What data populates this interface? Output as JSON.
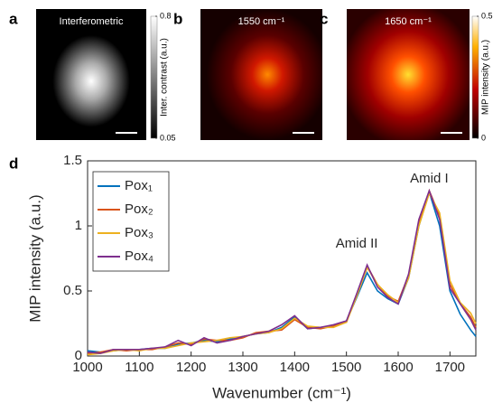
{
  "panels": [
    {
      "letter": "a",
      "label": "Interferometric",
      "colorbar": {
        "label": "Inter. contrast (a.u.)",
        "lim": [
          0.05,
          0.8
        ],
        "ticks": [
          0.05,
          0.8
        ]
      }
    },
    {
      "letter": "b",
      "label": "1550 cm⁻¹"
    },
    {
      "letter": "c",
      "label": "1650 cm⁻¹",
      "colorbar": {
        "label": "MIP intensity (a.u.)",
        "lim": [
          0,
          0.5
        ],
        "ticks": [
          0,
          0.5
        ]
      }
    }
  ],
  "chart_data": {
    "type": "line",
    "letter": "d",
    "xlabel": "Wavenumber (cm⁻¹)",
    "ylabel": "MIP intensity (a.u.)",
    "annotations": [
      "Amid II",
      "Amid I"
    ],
    "legend": "upper left",
    "xlim": [
      1000,
      1750
    ],
    "xticks": [
      1000,
      1100,
      1200,
      1300,
      1400,
      1500,
      1600,
      1700
    ],
    "ylim": [
      0,
      1.5
    ],
    "yticks": [
      0,
      0.5,
      1,
      1.5
    ],
    "x": [
      1000,
      1025,
      1050,
      1075,
      1100,
      1125,
      1150,
      1175,
      1200,
      1225,
      1250,
      1275,
      1300,
      1325,
      1350,
      1375,
      1400,
      1425,
      1450,
      1475,
      1500,
      1520,
      1540,
      1560,
      1580,
      1600,
      1620,
      1640,
      1660,
      1680,
      1700,
      1720,
      1740,
      1750
    ],
    "series": [
      {
        "name": "Pox₁",
        "color": "#0072bd",
        "values": [
          0.04,
          0.03,
          0.04,
          0.05,
          0.05,
          0.06,
          0.06,
          0.09,
          0.1,
          0.12,
          0.11,
          0.13,
          0.15,
          0.17,
          0.18,
          0.22,
          0.3,
          0.21,
          0.22,
          0.23,
          0.27,
          0.45,
          0.64,
          0.5,
          0.44,
          0.4,
          0.6,
          1.0,
          1.26,
          1.0,
          0.5,
          0.32,
          0.2,
          0.15
        ]
      },
      {
        "name": "Pox₂",
        "color": "#d95319",
        "values": [
          0.02,
          0.03,
          0.05,
          0.04,
          0.05,
          0.05,
          0.07,
          0.1,
          0.09,
          0.13,
          0.12,
          0.12,
          0.14,
          0.18,
          0.19,
          0.2,
          0.28,
          0.22,
          0.21,
          0.23,
          0.26,
          0.47,
          0.69,
          0.55,
          0.46,
          0.42,
          0.62,
          1.02,
          1.27,
          1.08,
          0.55,
          0.4,
          0.3,
          0.22
        ]
      },
      {
        "name": "Pox₃",
        "color": "#edb120",
        "values": [
          0.01,
          0.02,
          0.04,
          0.05,
          0.04,
          0.06,
          0.06,
          0.08,
          0.1,
          0.11,
          0.12,
          0.14,
          0.15,
          0.17,
          0.18,
          0.21,
          0.29,
          0.23,
          0.22,
          0.22,
          0.26,
          0.46,
          0.68,
          0.55,
          0.47,
          0.41,
          0.6,
          1.0,
          1.25,
          1.1,
          0.58,
          0.41,
          0.33,
          0.25
        ]
      },
      {
        "name": "Pox₄",
        "color": "#7e2f8e",
        "values": [
          0.03,
          0.02,
          0.05,
          0.05,
          0.05,
          0.06,
          0.07,
          0.12,
          0.08,
          0.14,
          0.1,
          0.12,
          0.15,
          0.17,
          0.19,
          0.24,
          0.31,
          0.21,
          0.22,
          0.24,
          0.27,
          0.48,
          0.7,
          0.53,
          0.45,
          0.4,
          0.63,
          1.05,
          1.27,
          1.05,
          0.52,
          0.4,
          0.28,
          0.2
        ]
      }
    ]
  }
}
